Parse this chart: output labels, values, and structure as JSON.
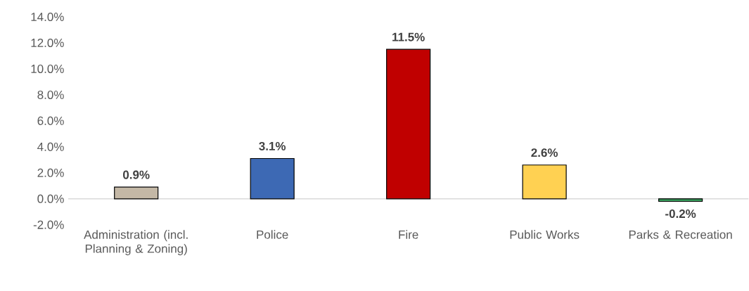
{
  "chart_data": {
    "type": "bar",
    "categories": [
      "Administration (incl. Planning & Zoning)",
      "Police",
      "Fire",
      "Public Works",
      "Parks & Recreation"
    ],
    "values": [
      0.9,
      3.1,
      11.5,
      2.6,
      -0.2
    ],
    "colors": [
      "#c4b8a6",
      "#3d69b4",
      "#c00000",
      "#ffd152",
      "#3a9f5e"
    ],
    "value_labels": [
      "0.9%",
      "3.1%",
      "11.5%",
      "2.6%",
      "-0.2%"
    ],
    "ylim": [
      -2,
      14
    ],
    "yticks": [
      {
        "value": -2,
        "label": "-2.0%"
      },
      {
        "value": 0,
        "label": "0.0%"
      },
      {
        "value": 2,
        "label": "2.0%"
      },
      {
        "value": 4,
        "label": "4.0%"
      },
      {
        "value": 6,
        "label": "6.0%"
      },
      {
        "value": 8,
        "label": "8.0%"
      },
      {
        "value": 10,
        "label": "10.0%"
      },
      {
        "value": 12,
        "label": "12.0%"
      },
      {
        "value": 14,
        "label": "14.0%"
      }
    ]
  }
}
